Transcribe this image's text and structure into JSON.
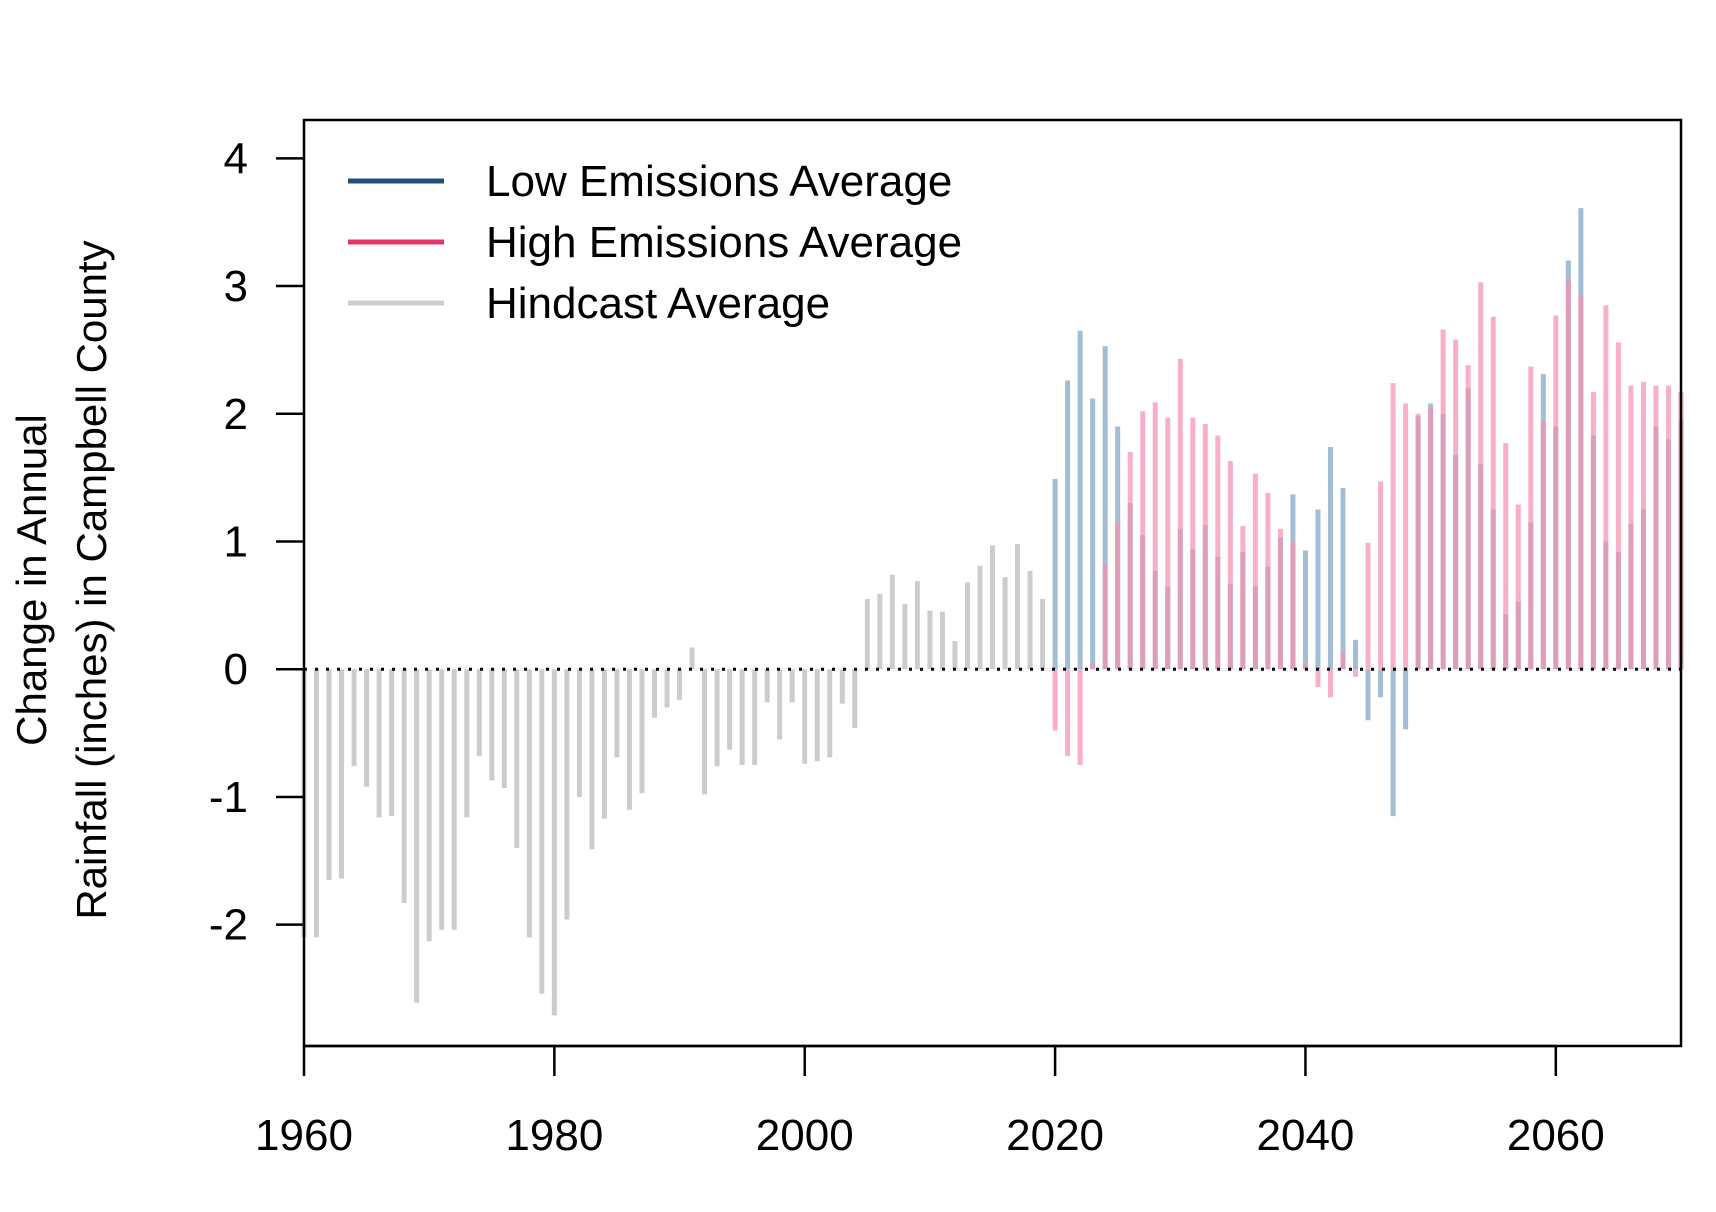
{
  "chart_data": {
    "type": "bar",
    "title": "",
    "xlabel": "",
    "ylabel": [
      "Change in Annual",
      "Rainfall (inches) in Campbell County"
    ],
    "xlim": [
      1960,
      2070
    ],
    "ylim": [
      -2.95,
      4.3
    ],
    "x_ticks": [
      1960,
      1980,
      2000,
      2020,
      2040,
      2060
    ],
    "y_ticks": [
      -2,
      -1,
      0,
      1,
      2,
      3,
      4
    ],
    "y_tick_labels": [
      "-2",
      "-1",
      "0",
      "1",
      "2",
      "3",
      "4"
    ],
    "legend_position": "top-left",
    "reference_line": {
      "y": 0,
      "style": "dotted"
    },
    "series": [
      {
        "name": "Low Emissions Average",
        "color": "#1f4e79",
        "bar_color": "#7fa3c3",
        "x": [
          2020,
          2021,
          2022,
          2023,
          2024,
          2025,
          2026,
          2027,
          2028,
          2029,
          2030,
          2031,
          2032,
          2033,
          2034,
          2035,
          2036,
          2037,
          2038,
          2039,
          2040,
          2041,
          2042,
          2043,
          2044,
          2045,
          2046,
          2047,
          2048,
          2049,
          2050,
          2051,
          2052,
          2053,
          2054,
          2055,
          2056,
          2057,
          2058,
          2059,
          2060,
          2061,
          2062,
          2063,
          2064,
          2065,
          2066,
          2067,
          2068,
          2069,
          2070
        ],
        "values": [
          1.49,
          2.26,
          2.65,
          2.12,
          2.53,
          1.9,
          1.3,
          1.05,
          0.77,
          0.65,
          1.1,
          0.94,
          1.13,
          0.88,
          0.67,
          0.92,
          0.65,
          0.8,
          1.03,
          1.37,
          0.93,
          1.25,
          1.74,
          1.42,
          0.23,
          -0.4,
          -0.22,
          -1.15,
          -0.47,
          1.98,
          2.08,
          2.0,
          1.68,
          2.2,
          1.61,
          1.25,
          0.43,
          0.53,
          1.15,
          2.31,
          1.9,
          3.2,
          3.61,
          1.83,
          1.0,
          0.92,
          1.14,
          1.25,
          1.9,
          1.8,
          1.95
        ]
      },
      {
        "name": "High Emissions Average",
        "color": "#e8336a",
        "bar_color": "#f591b0",
        "x": [
          2020,
          2021,
          2022,
          2023,
          2024,
          2025,
          2026,
          2027,
          2028,
          2029,
          2030,
          2031,
          2032,
          2033,
          2034,
          2035,
          2036,
          2037,
          2038,
          2039,
          2040,
          2041,
          2042,
          2043,
          2044,
          2045,
          2046,
          2047,
          2048,
          2049,
          2050,
          2051,
          2052,
          2053,
          2054,
          2055,
          2056,
          2057,
          2058,
          2059,
          2060,
          2061,
          2062,
          2063,
          2064,
          2065,
          2066,
          2067,
          2068,
          2069,
          2070
        ],
        "values": [
          -0.48,
          -0.68,
          -0.75,
          0.05,
          0.82,
          1.15,
          1.7,
          2.02,
          2.09,
          1.97,
          2.43,
          1.97,
          1.92,
          1.83,
          1.63,
          1.12,
          1.53,
          1.38,
          1.1,
          1.0,
          0.05,
          -0.14,
          -0.22,
          0.13,
          -0.06,
          0.99,
          1.47,
          2.24,
          2.08,
          2.0,
          2.05,
          2.66,
          2.58,
          2.38,
          3.03,
          2.76,
          1.77,
          1.29,
          2.37,
          1.95,
          2.77,
          3.05,
          2.93,
          2.17,
          2.85,
          2.56,
          2.22,
          2.25,
          2.22,
          2.22,
          2.17
        ]
      },
      {
        "name": "Hindcast Average",
        "color": "#cccccc",
        "bar_color": "#cccccc",
        "x": [
          1960,
          1961,
          1962,
          1963,
          1964,
          1965,
          1966,
          1967,
          1968,
          1969,
          1970,
          1971,
          1972,
          1973,
          1974,
          1975,
          1976,
          1977,
          1978,
          1979,
          1980,
          1981,
          1982,
          1983,
          1984,
          1985,
          1986,
          1987,
          1988,
          1989,
          1990,
          1991,
          1992,
          1993,
          1994,
          1995,
          1996,
          1997,
          1998,
          1999,
          2000,
          2001,
          2002,
          2003,
          2004,
          2005,
          2006,
          2007,
          2008,
          2009,
          2010,
          2011,
          2012,
          2013,
          2014,
          2015,
          2016,
          2017,
          2018,
          2019
        ],
        "values": [
          -2.1,
          -2.1,
          -1.65,
          -1.64,
          -0.76,
          -0.92,
          -1.16,
          -1.15,
          -1.83,
          -2.61,
          -2.13,
          -2.04,
          -2.04,
          -1.16,
          -0.68,
          -0.87,
          -0.93,
          -1.4,
          -2.1,
          -2.54,
          -2.71,
          -1.96,
          -1.0,
          -1.41,
          -1.17,
          -0.69,
          -1.1,
          -0.97,
          -0.38,
          -0.3,
          -0.24,
          0.17,
          -0.98,
          -0.76,
          -0.63,
          -0.75,
          -0.75,
          -0.26,
          -0.55,
          -0.26,
          -0.74,
          -0.72,
          -0.69,
          -0.27,
          -0.46,
          0.55,
          0.59,
          0.74,
          0.51,
          0.69,
          0.46,
          0.45,
          0.22,
          0.68,
          0.81,
          0.97,
          0.72,
          0.98,
          0.77,
          0.55
        ]
      }
    ]
  }
}
